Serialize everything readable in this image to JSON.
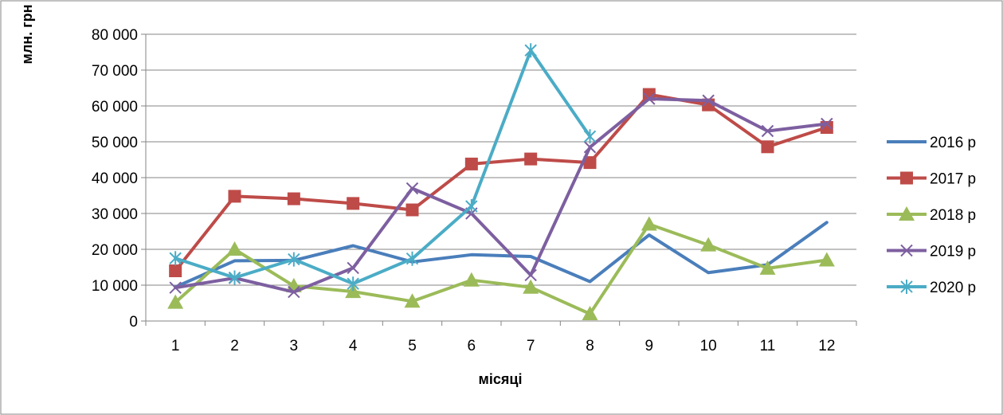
{
  "chart_data": {
    "type": "line",
    "title": "",
    "xlabel": "місяці",
    "ylabel": "млн. грн",
    "categories": [
      "1",
      "2",
      "3",
      "4",
      "5",
      "6",
      "7",
      "8",
      "9",
      "10",
      "11",
      "12"
    ],
    "ylim": [
      0,
      80000
    ],
    "yticks": [
      0,
      10000,
      20000,
      30000,
      40000,
      50000,
      60000,
      70000,
      80000
    ],
    "ytick_labels": [
      "0",
      "10 000",
      "20 000",
      "30 000",
      "40 000",
      "50 000",
      "60 000",
      "70 000",
      "80 000"
    ],
    "grid": "horizontal",
    "legend_position": "right",
    "series": [
      {
        "name": "2016 р",
        "color": "#4a7ebb",
        "marker": "none",
        "values": [
          9500,
          16800,
          16900,
          21000,
          16500,
          18500,
          18000,
          11000,
          24000,
          13500,
          15700,
          27500
        ]
      },
      {
        "name": "2017 р",
        "color": "#be4b48",
        "marker": "square",
        "values": [
          14000,
          34800,
          34100,
          32800,
          31000,
          43800,
          45200,
          44200,
          63200,
          60300,
          48600,
          54000
        ]
      },
      {
        "name": "2018 р",
        "color": "#9bbb59",
        "marker": "triangle",
        "values": [
          5200,
          20000,
          9800,
          8200,
          5500,
          11400,
          9400,
          2000,
          27000,
          21200,
          14700,
          17000
        ]
      },
      {
        "name": "2019 р",
        "color": "#7d5fa0",
        "marker": "x",
        "values": [
          9300,
          12000,
          8100,
          14800,
          37000,
          30000,
          12800,
          48500,
          62000,
          61500,
          53000,
          55000
        ]
      },
      {
        "name": "2020 р",
        "color": "#4bacc6",
        "marker": "star",
        "values": [
          17500,
          12100,
          17200,
          10400,
          17400,
          32000,
          75500,
          51500,
          null,
          null,
          null,
          null
        ]
      }
    ]
  }
}
